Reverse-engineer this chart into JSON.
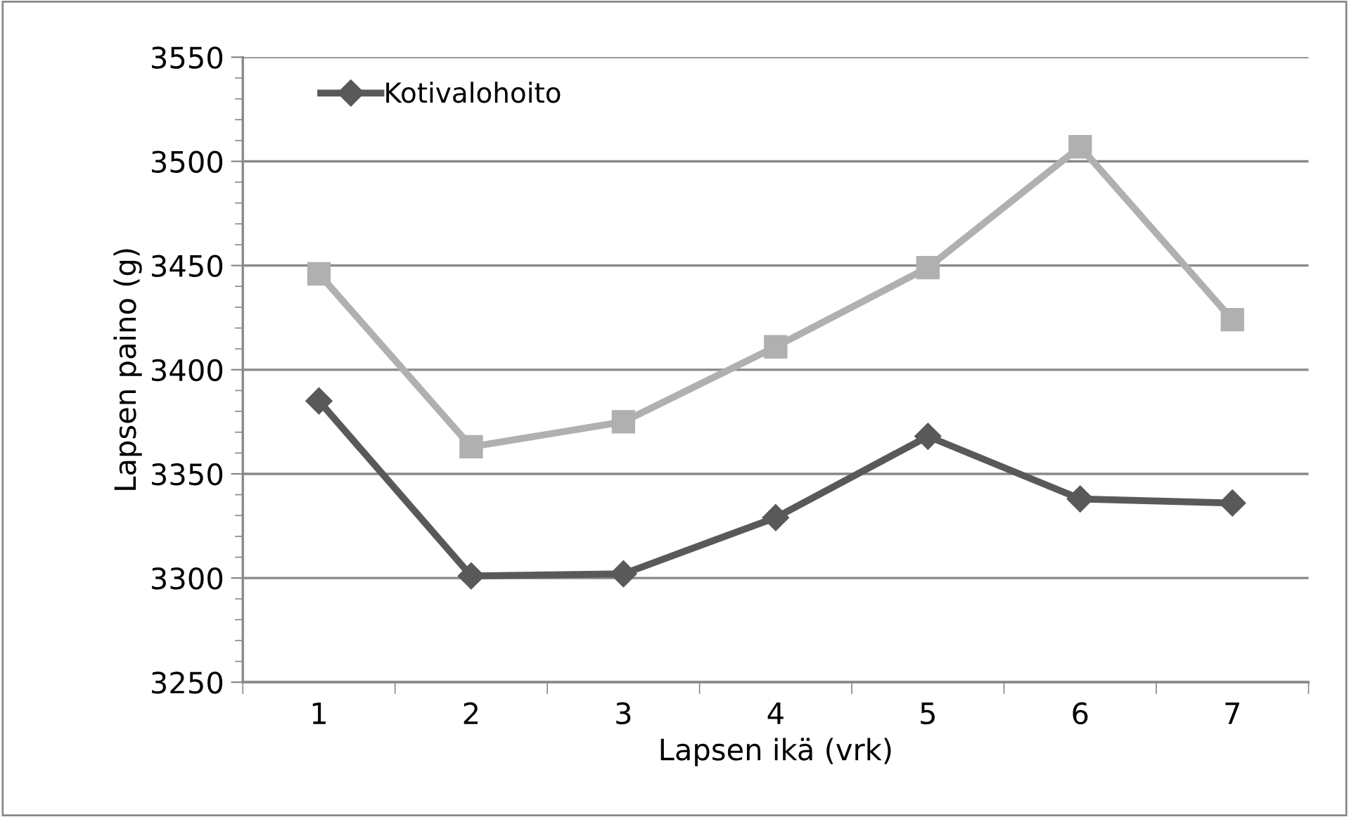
{
  "chart_data": {
    "type": "line",
    "xlabel": "Lapsen ikä (vrk)",
    "ylabel": "Lapsen paino (g)",
    "categories": [
      "1",
      "2",
      "3",
      "4",
      "5",
      "6",
      "7"
    ],
    "series": [
      {
        "name": "Kotivalohoito",
        "color": "#595959",
        "marker": "diamond",
        "values": [
          3385,
          3301,
          3302,
          3329,
          3368,
          3338,
          3336
        ]
      },
      {
        "color": "#b0b0b0",
        "marker": "square",
        "values": [
          3446,
          3363,
          3375,
          3411,
          3449,
          3507,
          3424
        ]
      }
    ],
    "ylim": [
      3250,
      3550
    ],
    "yticks": [
      3250,
      3300,
      3350,
      3400,
      3450,
      3500,
      3550
    ],
    "grid": "y",
    "legend": "top left",
    "line_style": "solid"
  }
}
